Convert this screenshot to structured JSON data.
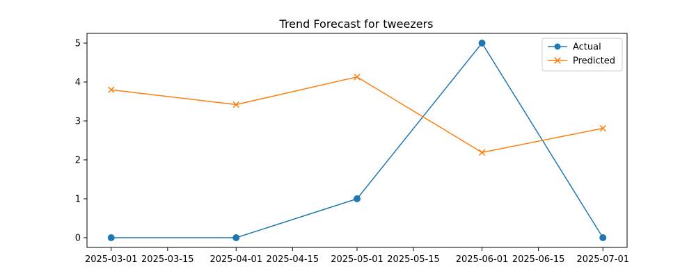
{
  "chart_data": {
    "type": "line",
    "title": "Trend Forecast for tweezers",
    "xlabel": "",
    "ylabel": "",
    "x": [
      "2025-03-01",
      "2025-04-01",
      "2025-05-01",
      "2025-06-01",
      "2025-07-01"
    ],
    "xlim": [
      "2025-02-23",
      "2025-07-07"
    ],
    "ylim": [
      -0.25,
      5.25
    ],
    "x_ticks": [
      "2025-03-01",
      "2025-03-15",
      "2025-04-01",
      "2025-04-15",
      "2025-05-01",
      "2025-05-15",
      "2025-06-01",
      "2025-06-15",
      "2025-07-01"
    ],
    "y_ticks": [
      0,
      1,
      2,
      3,
      4,
      5
    ],
    "grid": false,
    "legend_position": "top-right",
    "series": [
      {
        "name": "Actual",
        "values": [
          0,
          0,
          1,
          5,
          0
        ],
        "color": "#1f77b4",
        "marker": "circle"
      },
      {
        "name": "Predicted",
        "values": [
          3.8,
          3.42,
          4.13,
          2.19,
          2.81
        ],
        "color": "#ff7f0e",
        "marker": "x"
      }
    ]
  }
}
